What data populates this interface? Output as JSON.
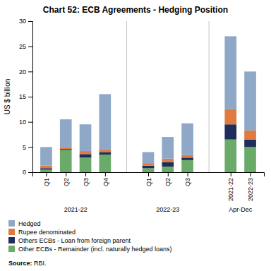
{
  "chart_data": {
    "type": "bar",
    "stacked": true,
    "title": "Chart 52: ECB Agreements - Hedging Position",
    "ylabel": "US $ billion",
    "source_prefix": "Source:",
    "source_text": " RBI.",
    "groups": [
      {
        "label": "2021-22",
        "categories": [
          "Q1",
          "Q2",
          "Q3",
          "Q4"
        ]
      },
      {
        "label": "2022-23",
        "categories": [
          "Q1",
          "Q2",
          "Q3"
        ]
      },
      {
        "label": "Apr-Dec",
        "categories": [
          "2021-22",
          "2022-23"
        ]
      }
    ],
    "series": [
      {
        "name": "Other ECBs - Remainder (incl. naturally hedged loans)",
        "color": "#6aab6a",
        "values": [
          0.5,
          4.4,
          2.9,
          3.5,
          0.8,
          1.1,
          2.4,
          6.5,
          5.0
        ]
      },
      {
        "name": "Others ECBs - Loan from foreign parent",
        "color": "#1f2d5a",
        "values": [
          0.3,
          0.2,
          0.7,
          0.5,
          0.5,
          0.9,
          0.5,
          3.0,
          1.5
        ]
      },
      {
        "name": "Rupee denominated",
        "color": "#e07a3e",
        "values": [
          0.5,
          0.4,
          0.6,
          0.5,
          0.5,
          0.7,
          0.5,
          3.0,
          1.8
        ]
      },
      {
        "name": "Hedged",
        "color": "#8fa8c8",
        "values": [
          3.7,
          5.5,
          5.3,
          11.0,
          2.2,
          4.3,
          6.3,
          14.5,
          11.7
        ]
      }
    ],
    "ylim": [
      0,
      30
    ],
    "yticks": [
      0,
      5,
      10,
      15,
      20,
      25,
      30
    ],
    "grid": false,
    "legend": "bottom"
  }
}
